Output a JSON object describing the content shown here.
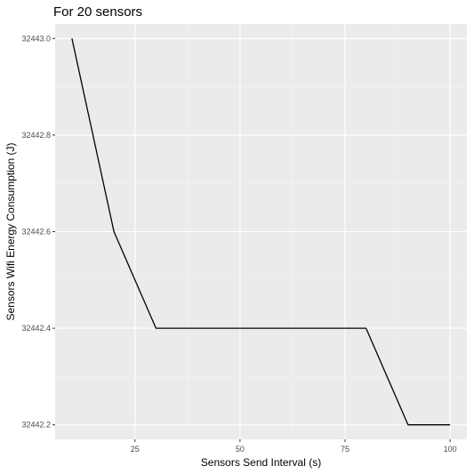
{
  "chart_data": {
    "type": "line",
    "title": "For 20 sensors",
    "xlabel": "Sensors Send Interval (s)",
    "ylabel": "Sensors Wifi Energy Consumption (J)",
    "x": [
      10,
      20,
      30,
      40,
      50,
      60,
      70,
      80,
      90,
      100
    ],
    "series": [
      {
        "values": [
          32443.0,
          32442.6,
          32442.4,
          32442.4,
          32442.4,
          32442.4,
          32442.4,
          32442.4,
          32442.2,
          32442.2
        ]
      }
    ],
    "xlim": [
      6,
      104
    ],
    "ylim": [
      32442.17,
      32443.03
    ],
    "xticks": [
      25,
      50,
      75,
      100
    ],
    "xtick_labels": [
      "25",
      "50",
      "75",
      "100"
    ],
    "yticks": [
      32442.2,
      32442.4,
      32442.6,
      32442.8,
      32443.0
    ],
    "ytick_labels": [
      "32442.2",
      "32442.4",
      "32442.6",
      "32442.8",
      "32443.0"
    ],
    "grid": true,
    "legend": "none",
    "colors": {
      "panel_background": "#ebebeb",
      "grid_major": "#ffffff",
      "grid_minor": "#f5f5f5",
      "line": "#000000",
      "tick_label": "#4d4d4d"
    }
  }
}
